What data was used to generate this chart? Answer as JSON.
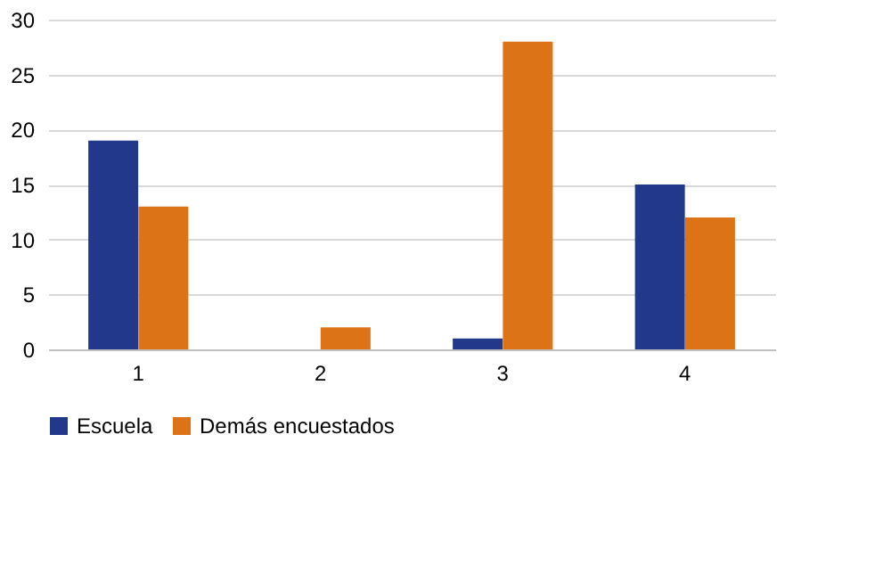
{
  "chart_data": {
    "type": "bar",
    "categories": [
      "1",
      "2",
      "3",
      "4"
    ],
    "series": [
      {
        "name": "Escuela",
        "color": "#22388a",
        "values": [
          19,
          0,
          1,
          15
        ]
      },
      {
        "name": "Demás encuestados",
        "color": "#dc7316",
        "values": [
          13,
          2,
          28,
          12
        ]
      }
    ],
    "ylim": [
      0,
      30
    ],
    "yticks": [
      0,
      5,
      10,
      15,
      20,
      25,
      30
    ],
    "grid": "y",
    "legend": "bottom"
  }
}
